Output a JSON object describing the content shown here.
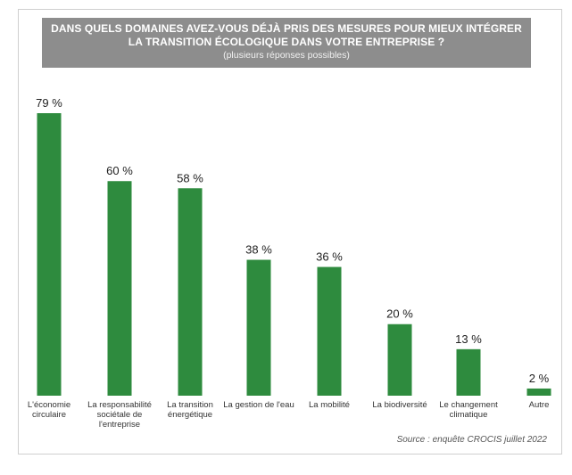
{
  "title_line1": "DANS QUELS DOMAINES AVEZ-VOUS DÉJÀ PRIS DES MESURES POUR MIEUX INTÉGRER",
  "title_line2": "LA TRANSITION ÉCOLOGIQUE DANS VOTRE ENTREPRISE ?",
  "subtitle": "(plusieurs réponses possibles)",
  "source": "Source : enquête CROCIS juillet 2022",
  "colors": {
    "bar": "#2e8b3e",
    "banner": "#8d8d8d"
  },
  "chart_data": {
    "type": "bar",
    "title": "DANS QUELS DOMAINES AVEZ-VOUS DÉJÀ PRIS DES MESURES POUR MIEUX INTÉGRER LA TRANSITION ÉCOLOGIQUE DANS VOTRE ENTREPRISE ?",
    "subtitle": "(plusieurs réponses possibles)",
    "categories": [
      [
        "L'économie",
        "circulaire"
      ],
      [
        "La responsabilité",
        "sociétale de",
        "l'entreprise"
      ],
      [
        "La transition",
        "énergétique"
      ],
      [
        "La gestion de l'eau"
      ],
      [
        "La mobilité"
      ],
      [
        "La biodiversité"
      ],
      [
        "Le changement",
        "climatique"
      ],
      [
        "Autre"
      ]
    ],
    "values": [
      79,
      60,
      58,
      38,
      36,
      20,
      13,
      2
    ],
    "value_labels": [
      "79 %",
      "60 %",
      "58 %",
      "38 %",
      "36 %",
      "20 %",
      "13 %",
      "2 %"
    ],
    "unit": "%",
    "ylim": [
      0,
      79
    ],
    "grid": false,
    "legend": "none"
  }
}
